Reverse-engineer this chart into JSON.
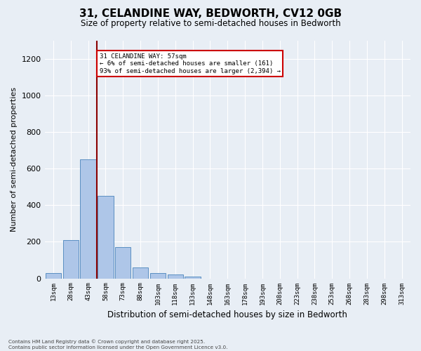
{
  "title_line1": "31, CELANDINE WAY, BEDWORTH, CV12 0GB",
  "title_line2": "Size of property relative to semi-detached houses in Bedworth",
  "xlabel": "Distribution of semi-detached houses by size in Bedworth",
  "ylabel": "Number of semi-detached properties",
  "bin_labels": [
    "13sqm",
    "28sqm",
    "43sqm",
    "58sqm",
    "73sqm",
    "88sqm",
    "103sqm",
    "118sqm",
    "133sqm",
    "148sqm",
    "163sqm",
    "178sqm",
    "193sqm",
    "208sqm",
    "223sqm",
    "238sqm",
    "253sqm",
    "268sqm",
    "283sqm",
    "298sqm",
    "313sqm"
  ],
  "bar_values": [
    30,
    210,
    650,
    450,
    170,
    60,
    30,
    20,
    10,
    0,
    0,
    0,
    0,
    0,
    0,
    0,
    0,
    0,
    0,
    0,
    0
  ],
  "bar_color": "#aec6e8",
  "bar_edge_color": "#5a8fc2",
  "vline_x_index": 3,
  "vline_color": "#8b0000",
  "annotation_text": "31 CELANDINE WAY: 57sqm\n← 6% of semi-detached houses are smaller (161)\n93% of semi-detached houses are larger (2,394) →",
  "annotation_box_color": "#ffffff",
  "annotation_edge_color": "#cc0000",
  "ylim": [
    0,
    1300
  ],
  "yticks": [
    0,
    200,
    400,
    600,
    800,
    1000,
    1200
  ],
  "background_color": "#e8eef5",
  "grid_color": "#ffffff",
  "footer_line1": "Contains HM Land Registry data © Crown copyright and database right 2025.",
  "footer_line2": "Contains public sector information licensed under the Open Government Licence v3.0."
}
